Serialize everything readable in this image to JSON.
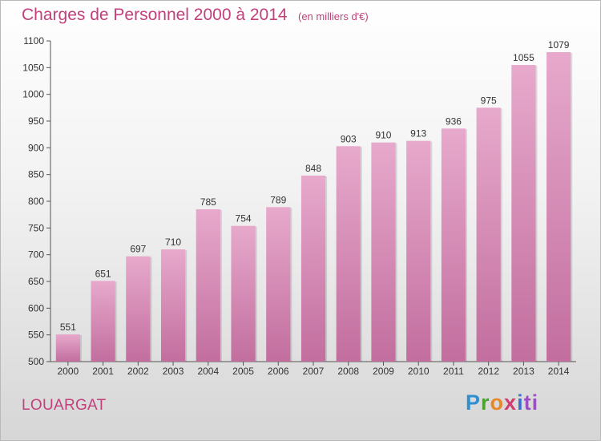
{
  "chart_data": {
    "type": "bar",
    "title": "Charges de Personnel 2000 à 2014",
    "subtitle": "(en milliers d'€)",
    "categories": [
      "2000",
      "2001",
      "2002",
      "2003",
      "2004",
      "2005",
      "2006",
      "2007",
      "2008",
      "2009",
      "2010",
      "2011",
      "2012",
      "2013",
      "2014"
    ],
    "values": [
      551,
      651,
      697,
      710,
      785,
      754,
      789,
      848,
      903,
      910,
      913,
      936,
      975,
      1055,
      1079
    ],
    "yticks": [
      500,
      550,
      600,
      650,
      700,
      750,
      800,
      850,
      900,
      950,
      1000,
      1050,
      1100
    ],
    "ylim": [
      500,
      1100
    ],
    "grid": false,
    "legend": "none",
    "bar_color_top": "#e7a9cc",
    "bar_color_bottom": "#c26e9e"
  },
  "commune": "LOUARGAT",
  "logo": {
    "parts": [
      "P",
      "r",
      "o",
      "x",
      "i",
      "ti"
    ]
  }
}
